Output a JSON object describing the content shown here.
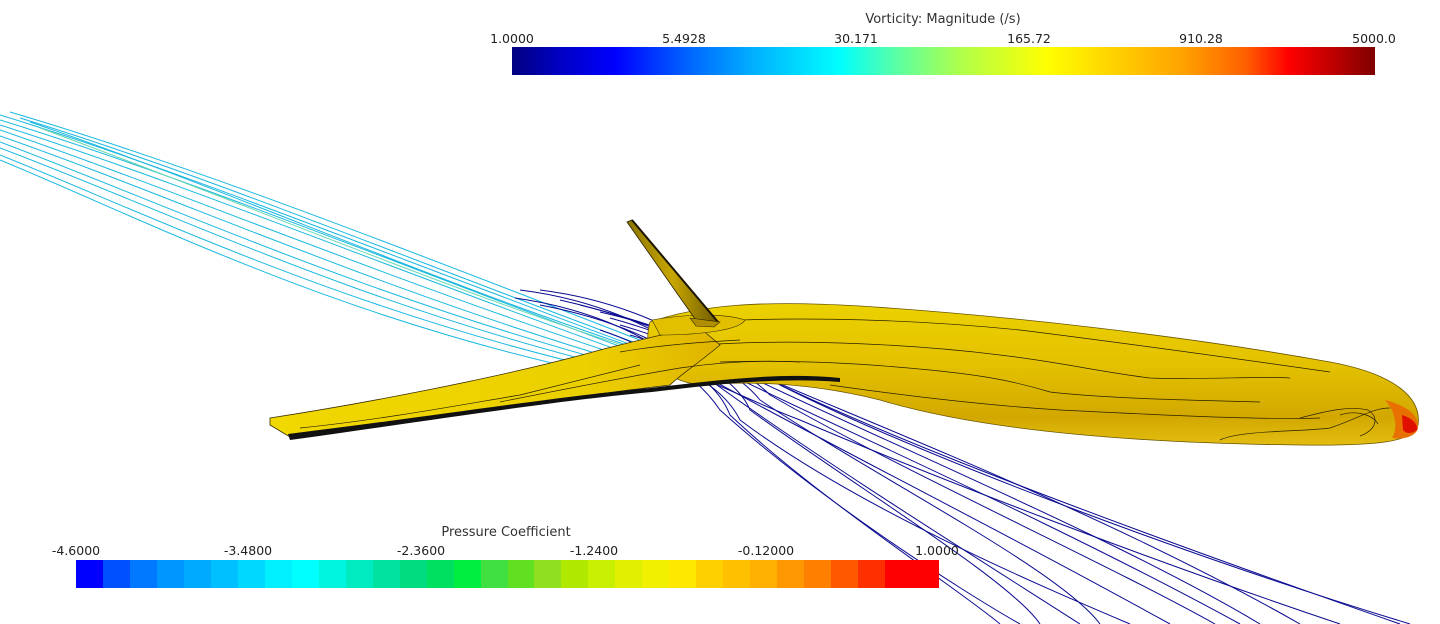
{
  "vorticity_legend": {
    "title": "Vorticity: Magnitude (/s)",
    "ticks": [
      "1.0000",
      "5.4928",
      "30.171",
      "165.72",
      "910.28",
      "5000.0"
    ]
  },
  "pressure_legend": {
    "title": "Pressure Coefficient",
    "ticks": [
      "-4.6000",
      "-3.4800",
      "-2.3600",
      "-1.2400",
      "-0.12000",
      "1.0000"
    ],
    "segment_colors": [
      "#0000ff",
      "#0050ff",
      "#0078ff",
      "#0096ff",
      "#00aaff",
      "#00c0ff",
      "#00d8ff",
      "#00f0ff",
      "#00ffff",
      "#00f5e0",
      "#00ecc0",
      "#00e2a0",
      "#00dc80",
      "#00e060",
      "#00ee40",
      "#40e040",
      "#60e020",
      "#90e020",
      "#b0e800",
      "#c8f000",
      "#e0f000",
      "#f0f000",
      "#ffe800",
      "#ffd000",
      "#ffc000",
      "#ffb000",
      "#ff9800",
      "#ff8000",
      "#ff5800",
      "#ff3000",
      "#ff0000",
      "#ff0000"
    ]
  },
  "colors": {
    "background": "#ffffff",
    "surface_fill": "#e8c600",
    "surface_dark": "#c29a00",
    "streamline_upper": "#1ab8e0",
    "streamline_lower": "#0a0a90"
  }
}
